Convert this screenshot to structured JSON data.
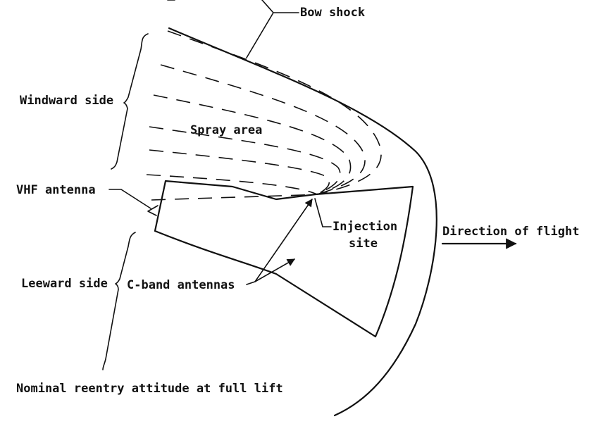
{
  "labels": {
    "bow_shock": "Bow shock",
    "windward_side": "Windward side",
    "spray_area": "Spray area",
    "vhf_antenna": "VHF antenna",
    "injection_site_line1": "Injection",
    "injection_site_line2": "site",
    "direction_of_flight": "Direction of flight",
    "leeward_side": "Leeward side",
    "c_band_antennas": "C-band antennas",
    "caption": "Nominal reentry attitude at full lift"
  },
  "colors": {
    "ink": "#111111",
    "background": "#ffffff"
  }
}
